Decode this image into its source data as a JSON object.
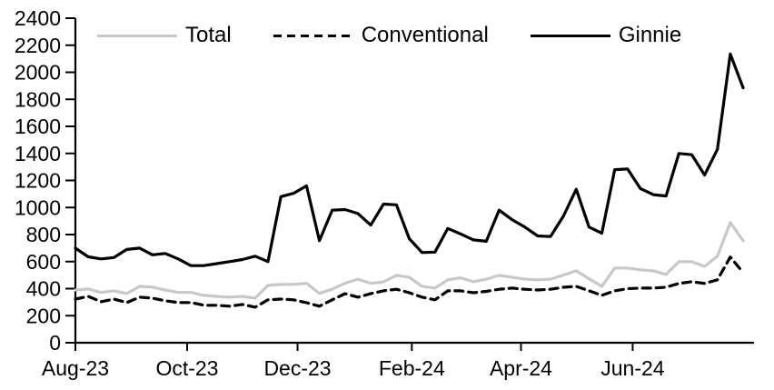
{
  "chart_data": {
    "type": "line",
    "title": "",
    "xlabel": "",
    "ylabel": "",
    "x_unit": "weekly observations, Aug-2023 through Aug-2024",
    "ylim": [
      0,
      2400
    ],
    "yticks": [
      0,
      200,
      400,
      600,
      800,
      1000,
      1200,
      1400,
      1600,
      1800,
      2000,
      2200,
      2400
    ],
    "xticks": [
      {
        "label": "Aug-23",
        "index": 0
      },
      {
        "label": "Oct-23",
        "index": 8.7
      },
      {
        "label": "Dec-23",
        "index": 17.3
      },
      {
        "label": "Feb-24",
        "index": 26.2
      },
      {
        "label": "Apr-24",
        "index": 34.7
      },
      {
        "label": "Jun-24",
        "index": 43.4
      }
    ],
    "n_points": 53,
    "grid": false,
    "legend_position": "top",
    "series": [
      {
        "name": "Total",
        "color": "#c8c8c8",
        "dash": "solid",
        "values": [
          390,
          397,
          372,
          384,
          363,
          417,
          411,
          390,
          372,
          372,
          350,
          343,
          337,
          343,
          330,
          424,
          431,
          431,
          440,
          365,
          395,
          440,
          470,
          440,
          450,
          498,
          485,
          417,
          404,
          465,
          480,
          451,
          470,
          498,
          485,
          470,
          465,
          470,
          500,
          532,
          473,
          417,
          552,
          552,
          539,
          532,
          505,
          599,
          599,
          565,
          640,
          889,
          754
        ]
      },
      {
        "name": "Conventional",
        "color": "#000000",
        "dash": "dashed",
        "values": [
          323,
          343,
          303,
          323,
          297,
          337,
          330,
          310,
          297,
          297,
          277,
          277,
          270,
          283,
          263,
          317,
          323,
          317,
          296,
          270,
          317,
          363,
          337,
          363,
          384,
          395,
          370,
          337,
          317,
          384,
          384,
          370,
          380,
          395,
          404,
          395,
          390,
          395,
          410,
          417,
          384,
          350,
          384,
          400,
          404,
          404,
          411,
          438,
          451,
          438,
          465,
          633,
          519
        ]
      },
      {
        "name": "Ginnie",
        "color": "#000000",
        "dash": "solid",
        "values": [
          700,
          635,
          620,
          630,
          690,
          700,
          650,
          660,
          620,
          570,
          570,
          585,
          600,
          615,
          640,
          600,
          1080,
          1105,
          1160,
          755,
          980,
          985,
          955,
          870,
          1025,
          1020,
          770,
          667,
          670,
          845,
          805,
          760,
          750,
          980,
          910,
          855,
          790,
          785,
          935,
          1135,
          855,
          810,
          1280,
          1285,
          1140,
          1095,
          1085,
          1400,
          1390,
          1240,
          1430,
          2135,
          1885
        ]
      }
    ]
  }
}
